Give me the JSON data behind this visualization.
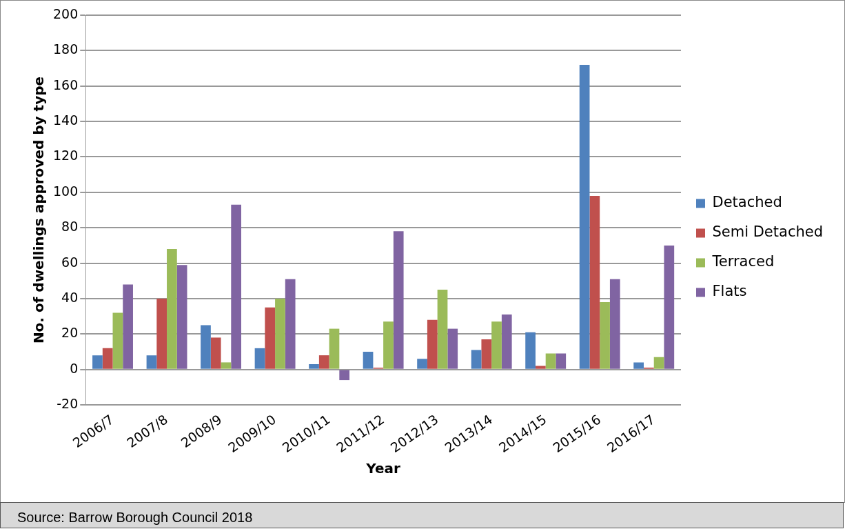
{
  "chart_data": {
    "type": "bar",
    "categories": [
      "2006/7",
      "2007/8",
      "2008/9",
      "2009/10",
      "2010/11",
      "2011/12",
      "2012/13",
      "2013/14",
      "2014/15",
      "2015/16",
      "2016/17"
    ],
    "series": [
      {
        "name": "Detached",
        "color": "#4f81bd",
        "values": [
          8,
          8,
          25,
          12,
          3,
          10,
          6,
          11,
          21,
          172,
          4
        ]
      },
      {
        "name": "Semi Detached",
        "color": "#c0504d",
        "values": [
          12,
          40,
          18,
          35,
          8,
          1,
          28,
          17,
          2,
          98,
          1
        ]
      },
      {
        "name": "Terraced",
        "color": "#9bbb59",
        "values": [
          32,
          68,
          4,
          40,
          23,
          27,
          45,
          27,
          9,
          38,
          7
        ]
      },
      {
        "name": "Flats",
        "color": "#8064a2",
        "values": [
          48,
          59,
          93,
          51,
          -6,
          78,
          23,
          31,
          9,
          51,
          70
        ]
      }
    ],
    "xlabel": "Year",
    "ylabel": "No. of dwellings approved by type",
    "ylim": [
      -20,
      200
    ],
    "yticks": [
      -20,
      0,
      20,
      40,
      60,
      80,
      100,
      120,
      140,
      160,
      180,
      200
    ],
    "grid": "y",
    "legend": "right",
    "annotations": [
      "Source: Barrow Borough Council 2018"
    ]
  }
}
